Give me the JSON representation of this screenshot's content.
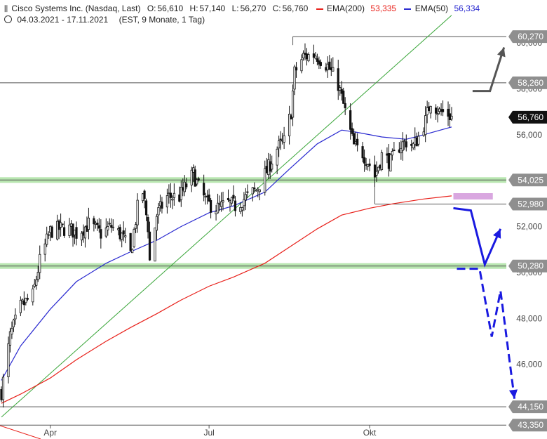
{
  "header": {
    "instrument": "Cisco Systems Inc. (Nasdaq, Last)",
    "open_label": "O:",
    "open": "56,610",
    "high_label": "H:",
    "high": "57,140",
    "low_label": "L:",
    "low": "56,270",
    "close_label": "C:",
    "close": "56,760",
    "ema200_label": "EMA(200)",
    "ema200_value": "53,335",
    "ema50_label": "EMA(50)",
    "ema50_value": "56,334",
    "period": "04.03.2021 - 17.11.2021",
    "period_info": "(EST, 9 Monate, 1 Tag)",
    "chart_icon": "candlestick-chart-icon",
    "clock_icon": "clock-icon"
  },
  "colors": {
    "candle": "#111111",
    "ema200": "#e8201a",
    "ema50": "#2a2ad0",
    "trendline": "#3aa63a",
    "support_zone": "#b8e6b0",
    "forecast_arrow": "#1a1ae0",
    "gray_arrow": "#555555",
    "target_box": "#d9a7e0",
    "label_bg": "#8f8f8f",
    "current_bg": "#111111"
  },
  "chart_data": {
    "type": "candlestick",
    "title": "Cisco Systems Inc. (Nasdaq, Last)",
    "ylim": [
      43000,
      61200
    ],
    "x_range": [
      "2021-03-04",
      "2021-11-17"
    ],
    "x_ticks": [
      {
        "label": "Apr",
        "date": "2021-04-01"
      },
      {
        "label": "Jul",
        "date": "2021-07-01"
      },
      {
        "label": "Okt",
        "date": "2021-10-01"
      }
    ],
    "y_ticks": [
      {
        "label": "46,000",
        "value": 46000
      },
      {
        "label": "48,000",
        "value": 48000
      },
      {
        "label": "50,000",
        "value": 50000
      },
      {
        "label": "52,000",
        "value": 52000
      },
      {
        "label": "54,000",
        "value": 54000
      },
      {
        "label": "56,000",
        "value": 56000
      },
      {
        "label": "58,000",
        "value": 58000
      },
      {
        "label": "60,000",
        "value": 60000
      }
    ],
    "levels": [
      {
        "label": "60,270",
        "value": 60270,
        "kind": "resistance",
        "from": "2021-08-18"
      },
      {
        "label": "58,260",
        "value": 58260,
        "kind": "resistance"
      },
      {
        "label": "54,025",
        "value": 54025,
        "kind": "support-zone"
      },
      {
        "label": "52,980",
        "value": 52980,
        "kind": "support",
        "from": "2021-10-04"
      },
      {
        "label": "50,280",
        "value": 50280,
        "kind": "support-zone"
      },
      {
        "label": "44,150",
        "value": 44150,
        "kind": "support"
      },
      {
        "label": "43,350",
        "value": 43350,
        "kind": "support"
      }
    ],
    "current_price": {
      "label": "56,760",
      "value": 56760
    },
    "close_path": [
      [
        "2021-03-04",
        44800
      ],
      [
        "2021-03-09",
        47200
      ],
      [
        "2021-03-15",
        48500
      ],
      [
        "2021-03-22",
        49000
      ],
      [
        "2021-03-26",
        50500
      ],
      [
        "2021-04-01",
        51800
      ],
      [
        "2021-04-06",
        51900
      ],
      [
        "2021-04-12",
        51900
      ],
      [
        "2021-04-16",
        51700
      ],
      [
        "2021-04-23",
        52100
      ],
      [
        "2021-04-30",
        51700
      ],
      [
        "2021-05-06",
        52000
      ],
      [
        "2021-05-12",
        51600
      ],
      [
        "2021-05-17",
        50800
      ],
      [
        "2021-05-21",
        52800
      ],
      [
        "2021-05-24",
        53500
      ],
      [
        "2021-05-27",
        52000
      ],
      [
        "2021-05-28",
        50500
      ],
      [
        "2021-06-01",
        52500
      ],
      [
        "2021-06-07",
        53300
      ],
      [
        "2021-06-14",
        53300
      ],
      [
        "2021-06-18",
        53800
      ],
      [
        "2021-06-22",
        54300
      ],
      [
        "2021-06-25",
        53700
      ],
      [
        "2021-06-30",
        53000
      ],
      [
        "2021-07-06",
        52800
      ],
      [
        "2021-07-12",
        53000
      ],
      [
        "2021-07-16",
        52900
      ],
      [
        "2021-07-21",
        53200
      ],
      [
        "2021-07-28",
        53600
      ],
      [
        "2021-08-03",
        54400
      ],
      [
        "2021-08-09",
        55400
      ],
      [
        "2021-08-13",
        55700
      ],
      [
        "2021-08-17",
        57000
      ],
      [
        "2021-08-19",
        58700
      ],
      [
        "2021-08-24",
        59400
      ],
      [
        "2021-08-31",
        59500
      ],
      [
        "2021-09-07",
        59000
      ],
      [
        "2021-09-13",
        58200
      ],
      [
        "2021-09-17",
        57000
      ],
      [
        "2021-09-22",
        55500
      ],
      [
        "2021-09-27",
        55200
      ],
      [
        "2021-10-01",
        54700
      ],
      [
        "2021-10-04",
        54200
      ],
      [
        "2021-10-08",
        55100
      ],
      [
        "2021-10-13",
        54800
      ],
      [
        "2021-10-18",
        55500
      ],
      [
        "2021-10-22",
        55700
      ],
      [
        "2021-10-26",
        55500
      ],
      [
        "2021-10-29",
        55900
      ],
      [
        "2021-11-02",
        56600
      ],
      [
        "2021-11-05",
        57500
      ],
      [
        "2021-11-10",
        57000
      ],
      [
        "2021-11-15",
        56900
      ],
      [
        "2021-11-17",
        56760
      ]
    ],
    "ema50": [
      [
        "2021-03-04",
        45300
      ],
      [
        "2021-03-15",
        46800
      ],
      [
        "2021-04-01",
        48400
      ],
      [
        "2021-04-16",
        49600
      ],
      [
        "2021-05-03",
        50400
      ],
      [
        "2021-05-17",
        50900
      ],
      [
        "2021-06-01",
        51400
      ],
      [
        "2021-06-15",
        52000
      ],
      [
        "2021-07-01",
        52600
      ],
      [
        "2021-07-15",
        52900
      ],
      [
        "2021-08-02",
        53500
      ],
      [
        "2021-08-16",
        54500
      ],
      [
        "2021-09-01",
        55600
      ],
      [
        "2021-09-15",
        56200
      ],
      [
        "2021-09-24",
        56100
      ],
      [
        "2021-10-08",
        55900
      ],
      [
        "2021-10-22",
        55800
      ],
      [
        "2021-11-01",
        56000
      ],
      [
        "2021-11-17",
        56334
      ]
    ],
    "ema200": [
      [
        "2021-03-04",
        44300
      ],
      [
        "2021-03-15",
        44700
      ],
      [
        "2021-04-01",
        45400
      ],
      [
        "2021-04-16",
        46200
      ],
      [
        "2021-05-03",
        47000
      ],
      [
        "2021-05-17",
        47600
      ],
      [
        "2021-06-01",
        48200
      ],
      [
        "2021-06-15",
        48800
      ],
      [
        "2021-07-01",
        49400
      ],
      [
        "2021-07-15",
        49800
      ],
      [
        "2021-08-02",
        50400
      ],
      [
        "2021-08-16",
        51100
      ],
      [
        "2021-09-01",
        51900
      ],
      [
        "2021-09-15",
        52500
      ],
      [
        "2021-10-01",
        52800
      ],
      [
        "2021-10-15",
        53000
      ],
      [
        "2021-11-01",
        53200
      ],
      [
        "2021-11-17",
        53335
      ]
    ],
    "trendline": [
      [
        "2021-03-04",
        43700
      ],
      [
        "2021-11-17",
        61200
      ]
    ],
    "target_zone": {
      "from": "2021-11-18",
      "to": "2021-12-09",
      "low": 53000,
      "high": 53300
    },
    "scenario_up": [
      [
        "2021-11-29",
        57900
      ],
      [
        "2021-12-09",
        57900
      ],
      [
        "2021-12-17",
        59800
      ]
    ],
    "scenario_bounce": [
      [
        "2021-11-18",
        52800
      ],
      [
        "2021-11-28",
        52700
      ],
      [
        "2021-12-06",
        50350
      ],
      [
        "2021-12-15",
        51900
      ]
    ],
    "scenario_down": [
      [
        "2021-11-20",
        50160
      ],
      [
        "2021-12-03",
        50160
      ],
      [
        "2021-12-10",
        47200
      ],
      [
        "2021-12-15",
        49200
      ],
      [
        "2021-12-23",
        44500
      ]
    ]
  }
}
